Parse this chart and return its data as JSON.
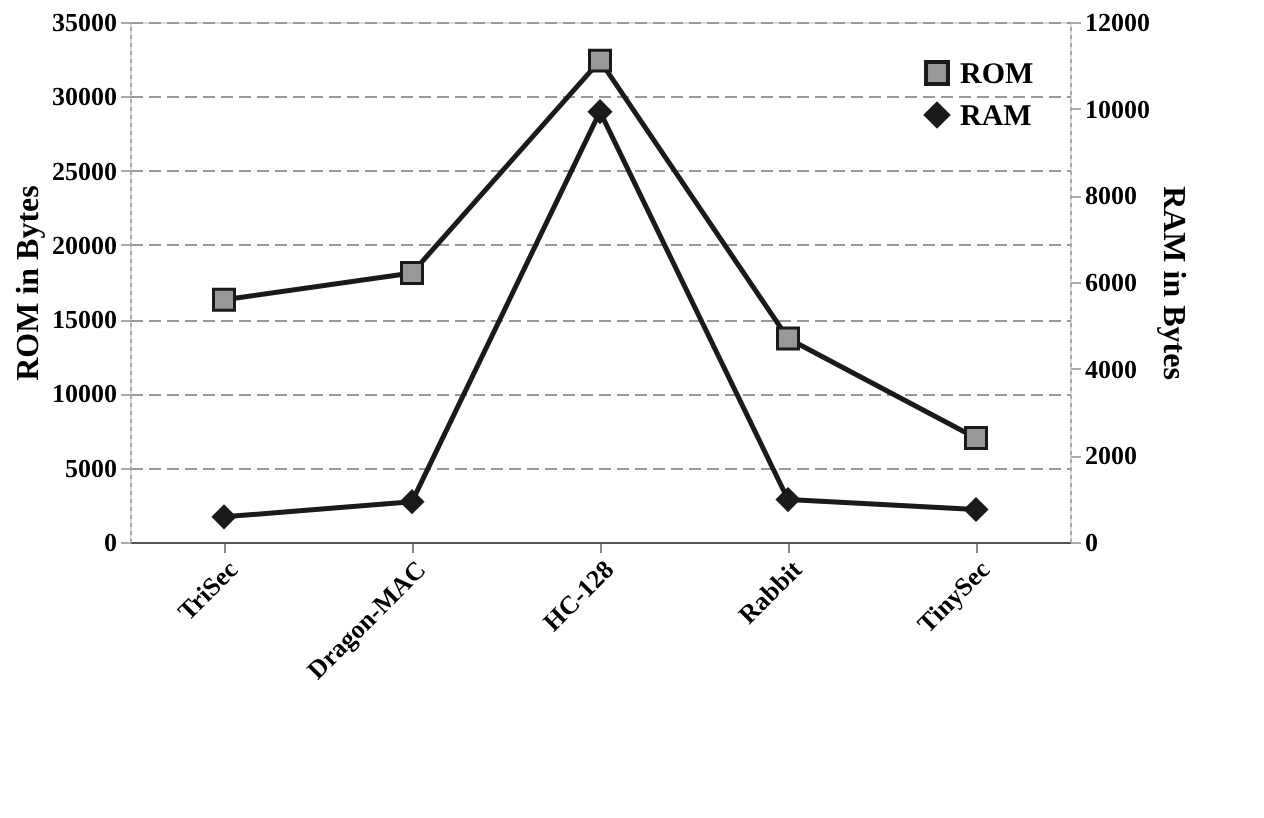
{
  "chart_data": {
    "type": "line",
    "ylabel": "ROM in Bytes",
    "y2label": "RAM in Bytes",
    "categories": [
      "TriSec",
      "Dragon-MAC",
      "HC-128",
      "Rabbit",
      "TinySec"
    ],
    "series": [
      {
        "name": "ROM",
        "color": "#1a1a1a",
        "marker": "square",
        "values": [
          16300,
          18100,
          32400,
          13700,
          7000
        ]
      },
      {
        "name": "RAM",
        "color": "#1a1a1a",
        "marker": "diamond",
        "axis": "y2",
        "values": [
          580,
          930,
          9930,
          980,
          750
        ]
      }
    ],
    "ylim": [
      0,
      35000
    ],
    "yticks": [
      0,
      5000,
      10000,
      15000,
      20000,
      25000,
      30000,
      35000
    ],
    "y2lim": [
      0,
      12000
    ],
    "y2ticks": [
      0,
      2000,
      4000,
      6000,
      8000,
      10000,
      12000
    ],
    "grid": "y",
    "legend": "top right",
    "line_style": "solid"
  }
}
